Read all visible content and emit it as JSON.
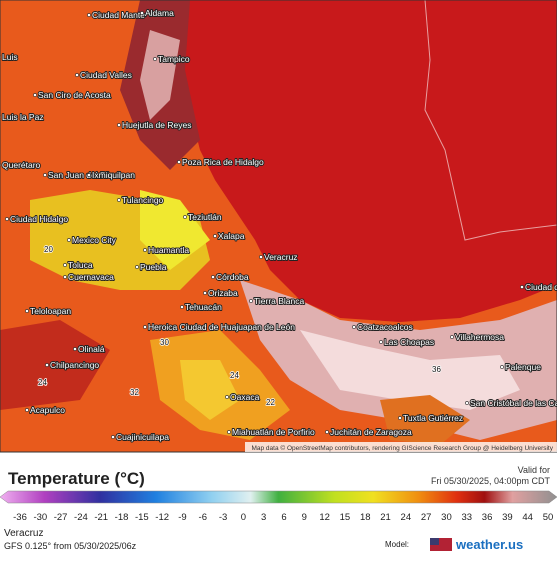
{
  "map": {
    "attribution": "Map data © OpenStreetMap contributors, rendering GIScience Research Group @ Heidelberg University",
    "cities": [
      "Ciudad Mante",
      "Aldama",
      "Tampico",
      "Luis",
      "Ciudad Valles",
      "San Ciro de Acosta",
      "Luis la Paz",
      "Huejutla de Reyes",
      "Poza Rica de Hidalgo",
      "Querétaro",
      "San Juan del Río",
      "Ixmiquilpan",
      "Tulancingo",
      "Teziutlán",
      "Ciudad Hidalgo",
      "Mexico City",
      "Huamantla",
      "Xalapa",
      "Toluca",
      "Cuernavaca",
      "Puebla",
      "Córdoba",
      "Orizaba",
      "Veracruz",
      "Tierra Blanca",
      "Tehuacán",
      "Teloloapan",
      "Heroica Ciudad de Huajuapan de León",
      "Olinalá",
      "Chilpancingo",
      "Acapulco",
      "Oaxaca",
      "Coatzacoalcos",
      "Las Choapas",
      "Villahermosa",
      "Palenque",
      "Ciudad del Carmen",
      "Tuxtla Gutiérrez",
      "San Cristóbal de las Casas",
      "Miahuatlán de Porfirio",
      "Juchitán de Zaragoza",
      "Cuajinicuilapa"
    ],
    "temperatures": [
      "24",
      "22",
      "36",
      "20",
      "32",
      "24",
      "30"
    ]
  },
  "legend": {
    "title": "Temperature (°C)",
    "valid_label": "Valid for",
    "valid_time": "Fri 05/30/2025, 04:00pm CDT",
    "ticks": [
      -36,
      -30,
      -27,
      -24,
      -21,
      -18,
      -15,
      -12,
      -9,
      -6,
      -3,
      0,
      3,
      6,
      9,
      12,
      15,
      18,
      21,
      24,
      27,
      30,
      33,
      36,
      39,
      44,
      50
    ]
  },
  "footer": {
    "location": "Veracruz",
    "model_run": "GFS 0.125° from 05/30/2025/06z",
    "model_label": "Model:",
    "brand": "weather.us"
  }
}
